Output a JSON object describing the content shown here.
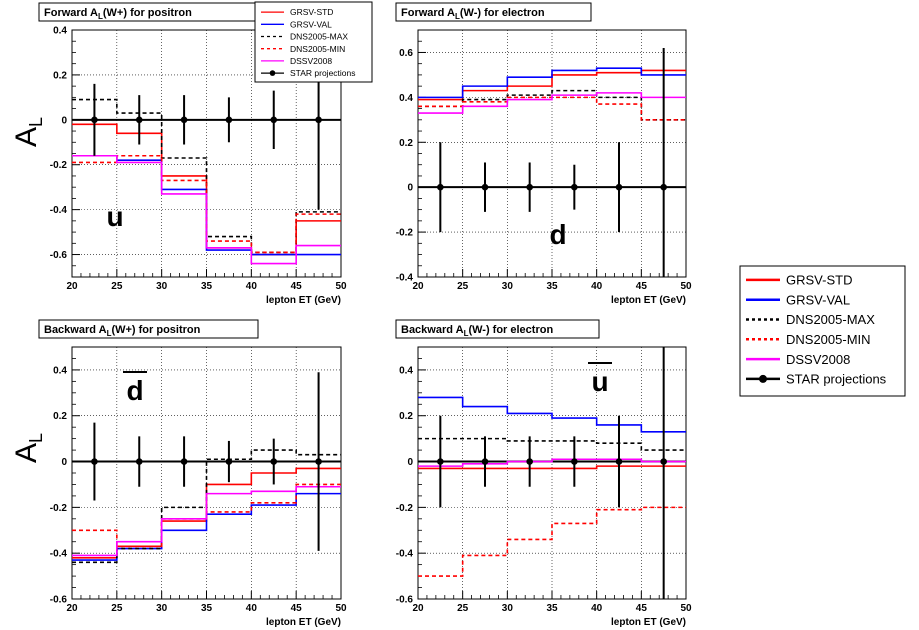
{
  "common": {
    "ylabel_main": "A",
    "ylabel_sub": "L",
    "xaxis_title": "lepton ET (GeV)",
    "x_bin_edges": [
      20,
      25,
      30,
      35,
      40,
      45,
      50
    ],
    "x_ticks": [
      20,
      25,
      30,
      35,
      40,
      45,
      50
    ],
    "star_x": [
      22.5,
      27.5,
      32.5,
      37.5,
      42.5,
      47.5
    ],
    "colors": {
      "GRSV-STD": "#ff0000",
      "GRSV-VAL": "#0000ff",
      "DNS2005-MAX": "#000000",
      "DNS2005-MIN": "#ff0000",
      "DSSV2008": "#ff00ff",
      "STAR projections": "#000000"
    }
  },
  "small_legend": [
    {
      "name": "GRSV-STD",
      "style": "solid"
    },
    {
      "name": "GRSV-VAL",
      "style": "solid"
    },
    {
      "name": "DNS2005-MAX",
      "style": "dashed"
    },
    {
      "name": "DNS2005-MIN",
      "style": "dashed"
    },
    {
      "name": "DSSV2008",
      "style": "solid"
    },
    {
      "name": "STAR projections",
      "style": "marker"
    }
  ],
  "big_legend": [
    {
      "name": "GRSV-STD",
      "style": "solid"
    },
    {
      "name": "GRSV-VAL",
      "style": "solid"
    },
    {
      "name": "DNS2005-MAX",
      "style": "dashed"
    },
    {
      "name": "DNS2005-MIN",
      "style": "dashed"
    },
    {
      "name": "DSSV2008",
      "style": "solid"
    },
    {
      "name": "STAR projections",
      "style": "marker"
    }
  ],
  "chart_data": [
    {
      "type": "line",
      "step": true,
      "title_pre": "Forward A",
      "title_sub": "L",
      "title_post": "(W+)   for positron",
      "quark_label": "u",
      "quark_bar": false,
      "ylim": [
        -0.7,
        0.4
      ],
      "yticks": [
        -0.6,
        -0.4,
        -0.2,
        0,
        0.2,
        0.4
      ],
      "xlabel": "lepton ET (GeV)",
      "series": [
        {
          "name": "GRSV-STD",
          "values": [
            -0.02,
            -0.06,
            -0.25,
            -0.57,
            -0.6,
            -0.45
          ]
        },
        {
          "name": "GRSV-VAL",
          "values": [
            -0.16,
            -0.18,
            -0.31,
            -0.58,
            -0.6,
            -0.6
          ]
        },
        {
          "name": "DNS2005-MAX",
          "values": [
            0.09,
            0.03,
            -0.17,
            -0.52,
            -0.59,
            -0.41
          ]
        },
        {
          "name": "DNS2005-MIN",
          "values": [
            -0.19,
            -0.16,
            -0.27,
            -0.54,
            -0.59,
            -0.42
          ]
        },
        {
          "name": "DSSV2008",
          "values": [
            -0.16,
            -0.19,
            -0.33,
            -0.57,
            -0.64,
            -0.56
          ]
        }
      ],
      "star": {
        "values": [
          0,
          0,
          0,
          0,
          0,
          0
        ],
        "err": [
          0.16,
          0.11,
          0.11,
          0.1,
          0.13,
          0.4
        ]
      }
    },
    {
      "type": "line",
      "step": true,
      "title_pre": "Forward A",
      "title_sub": "L",
      "title_post": "(W-)   for electron",
      "quark_label": "d",
      "quark_bar": false,
      "ylim": [
        -0.4,
        0.7
      ],
      "yticks": [
        -0.4,
        -0.2,
        0,
        0.2,
        0.4,
        0.6
      ],
      "xlabel": "lepton ET (GeV)",
      "series": [
        {
          "name": "GRSV-STD",
          "values": [
            0.39,
            0.43,
            0.45,
            0.5,
            0.51,
            0.52
          ]
        },
        {
          "name": "GRSV-VAL",
          "values": [
            0.4,
            0.45,
            0.49,
            0.52,
            0.53,
            0.5
          ]
        },
        {
          "name": "DNS2005-MAX",
          "values": [
            0.36,
            0.39,
            0.41,
            0.43,
            0.4,
            0.3
          ]
        },
        {
          "name": "DNS2005-MIN",
          "values": [
            0.36,
            0.38,
            0.4,
            0.4,
            0.37,
            0.3
          ]
        },
        {
          "name": "DSSV2008",
          "values": [
            0.33,
            0.36,
            0.39,
            0.41,
            0.42,
            0.4
          ]
        }
      ],
      "star": {
        "values": [
          0,
          0,
          0,
          0,
          0,
          0
        ],
        "err": [
          0.2,
          0.11,
          0.11,
          0.1,
          0.2,
          0.62
        ]
      }
    },
    {
      "type": "line",
      "step": true,
      "title_pre": "Backward A",
      "title_sub": "L",
      "title_post": "(W+)   for positron",
      "quark_label": "d",
      "quark_bar": true,
      "ylim": [
        -0.6,
        0.5
      ],
      "yticks": [
        -0.6,
        -0.4,
        -0.2,
        0,
        0.2,
        0.4
      ],
      "xlabel": "lepton ET (GeV)",
      "series": [
        {
          "name": "GRSV-STD",
          "values": [
            -0.42,
            -0.37,
            -0.26,
            -0.1,
            -0.05,
            -0.03
          ]
        },
        {
          "name": "GRSV-VAL",
          "values": [
            -0.43,
            -0.38,
            -0.3,
            -0.23,
            -0.19,
            -0.14
          ]
        },
        {
          "name": "DNS2005-MAX",
          "values": [
            -0.44,
            -0.38,
            -0.2,
            0.01,
            0.05,
            0.03
          ]
        },
        {
          "name": "DNS2005-MIN",
          "values": [
            -0.3,
            -0.37,
            -0.25,
            -0.22,
            -0.18,
            -0.1
          ]
        },
        {
          "name": "DSSV2008",
          "values": [
            -0.41,
            -0.35,
            -0.25,
            -0.14,
            -0.13,
            -0.11
          ]
        }
      ],
      "star": {
        "values": [
          0,
          0,
          0,
          0,
          0,
          0
        ],
        "err": [
          0.17,
          0.11,
          0.11,
          0.09,
          0.1,
          0.39
        ]
      }
    },
    {
      "type": "line",
      "step": true,
      "title_pre": "Backward A",
      "title_sub": "L",
      "title_post": "(W-)   for electron",
      "quark_label": "u",
      "quark_bar": true,
      "ylim": [
        -0.6,
        0.5
      ],
      "yticks": [
        -0.6,
        -0.4,
        -0.2,
        0,
        0.2,
        0.4
      ],
      "xlabel": "lepton ET (GeV)",
      "series": [
        {
          "name": "GRSV-STD",
          "values": [
            -0.03,
            -0.03,
            -0.03,
            -0.03,
            -0.02,
            -0.02
          ]
        },
        {
          "name": "GRSV-VAL",
          "values": [
            0.28,
            0.24,
            0.21,
            0.19,
            0.16,
            0.13
          ]
        },
        {
          "name": "DNS2005-MAX",
          "values": [
            0.1,
            0.1,
            0.09,
            0.09,
            0.08,
            0.05
          ]
        },
        {
          "name": "DNS2005-MIN",
          "values": [
            -0.5,
            -0.41,
            -0.34,
            -0.27,
            -0.21,
            -0.2
          ]
        },
        {
          "name": "DSSV2008",
          "values": [
            -0.02,
            -0.01,
            0.0,
            0.01,
            0.01,
            0.0
          ]
        }
      ],
      "star": {
        "values": [
          0,
          0,
          0,
          0,
          0,
          0
        ],
        "err": [
          0.2,
          0.11,
          0.11,
          0.11,
          0.2,
          0.62
        ]
      }
    }
  ]
}
